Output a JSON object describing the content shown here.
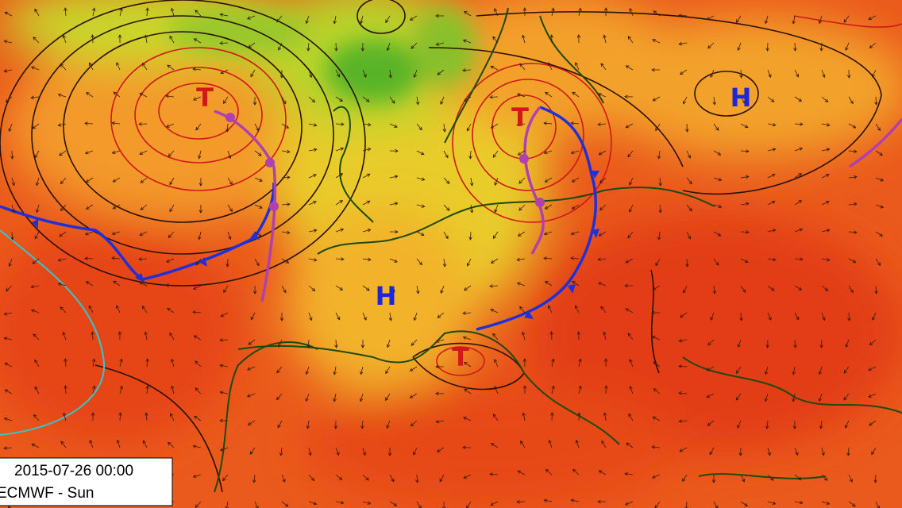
{
  "pressure_centers": [
    {
      "label": "T"
    },
    {
      "label": "T"
    },
    {
      "label": "T"
    },
    {
      "label": "H"
    },
    {
      "label": "H"
    }
  ],
  "info_box": {
    "datetime": "2015-07-26 00:00",
    "model": "ECMWF - Sun"
  }
}
